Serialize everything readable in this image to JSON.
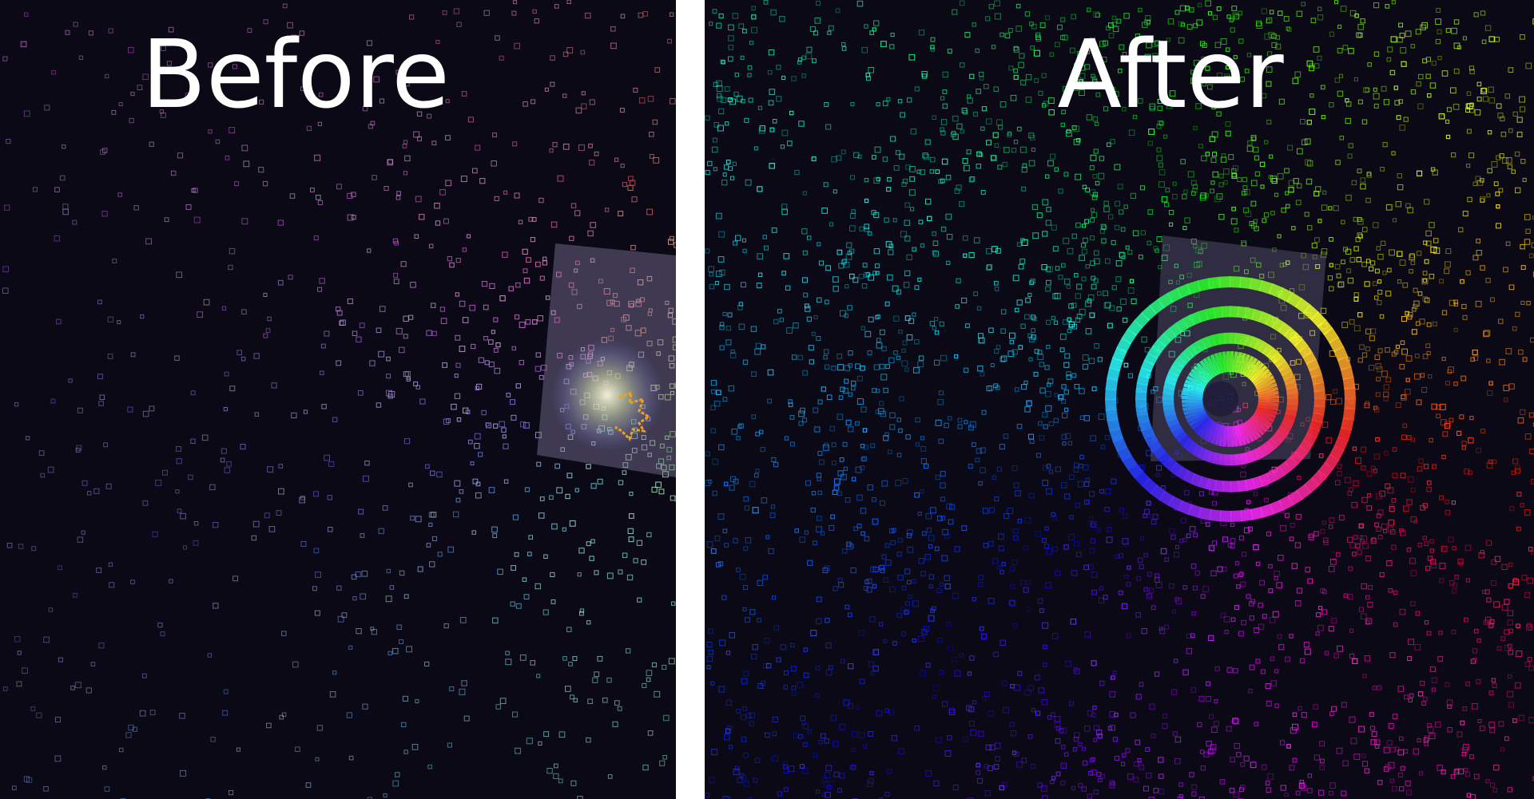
{
  "comparison": {
    "before": {
      "label": "Before"
    },
    "after": {
      "label": "After"
    }
  },
  "colors": {
    "background": "#0a0915",
    "divider": "#ffffff",
    "label": "#ffffff",
    "overlay": "#8a7fa8",
    "marker": "#f2a21a"
  }
}
